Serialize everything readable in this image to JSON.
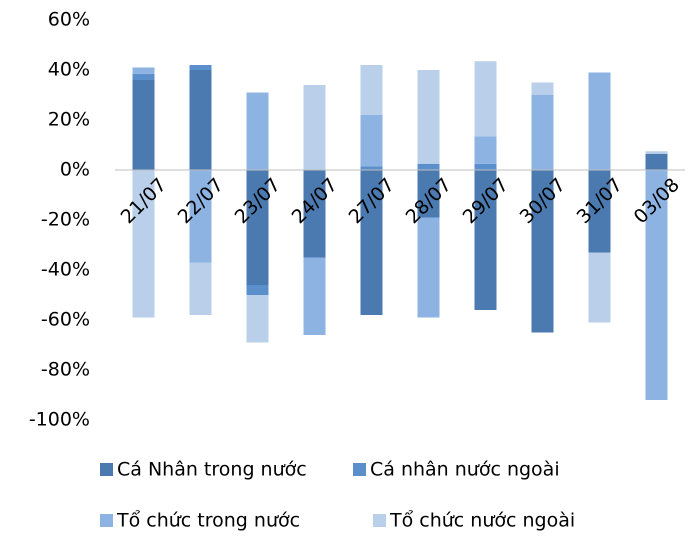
{
  "chart_data": {
    "type": "stacked_bar",
    "categories": [
      "21/07",
      "22/07",
      "23/07",
      "24/07",
      "27/07",
      "28/07",
      "29/07",
      "30/07",
      "31/07",
      "03/08"
    ],
    "series": [
      {
        "name": "Cá Nhân trong nước",
        "color": "#4a7ab0",
        "values": [
          36,
          40,
          -46,
          -35,
          -58,
          -19,
          -56,
          -65,
          -33,
          6.5
        ]
      },
      {
        "name": "Cá nhân nước ngoài",
        "color": "#5b8fcc",
        "values": [
          2.5,
          2,
          -4,
          0,
          1.5,
          2.5,
          2.5,
          0,
          0,
          0
        ]
      },
      {
        "name": "Tổ chức trong nước",
        "color": "#8db3e2",
        "values": [
          2.5,
          -37,
          31,
          -31,
          20.5,
          -40,
          11,
          30,
          39,
          -92
        ]
      },
      {
        "name": "Tổ chức nước ngoài",
        "color": "#b9cfea",
        "values": [
          -59,
          -21,
          -19,
          34,
          20,
          37.5,
          30,
          5,
          -28,
          1
        ]
      }
    ],
    "ylim": [
      -100,
      60
    ],
    "yticks": [
      {
        "value": -100,
        "label": "-100%"
      },
      {
        "value": -80,
        "label": "-80%"
      },
      {
        "value": -60,
        "label": "-60%"
      },
      {
        "value": -40,
        "label": "-40%"
      },
      {
        "value": -20,
        "label": "-20%"
      },
      {
        "value": 0,
        "label": "0%"
      },
      {
        "value": 20,
        "label": "20%"
      },
      {
        "value": 40,
        "label": "40%"
      },
      {
        "value": 60,
        "label": "60%"
      }
    ],
    "grid": false
  }
}
